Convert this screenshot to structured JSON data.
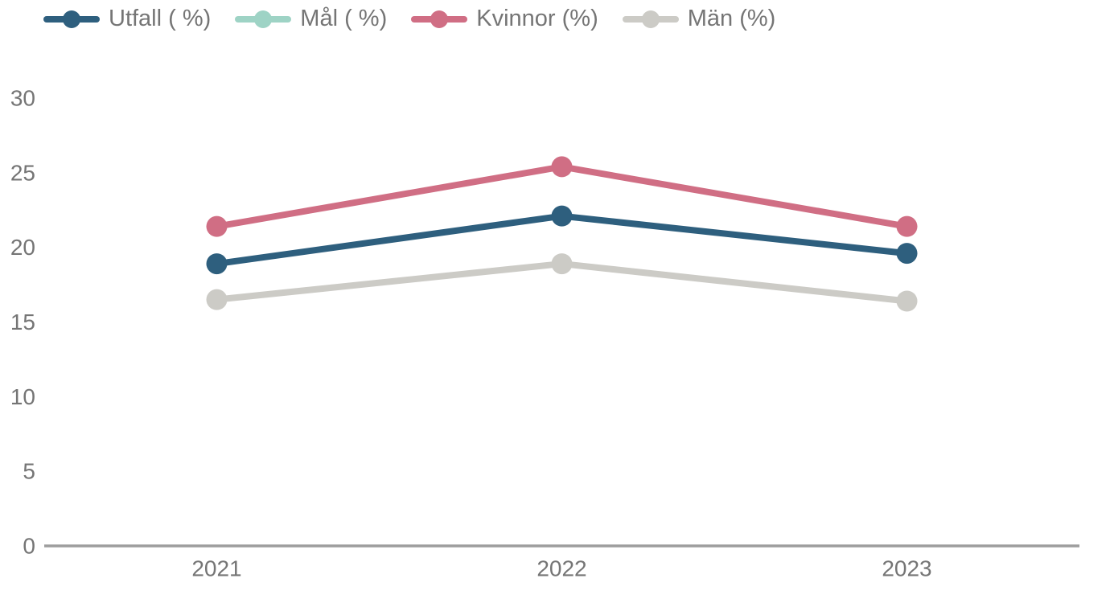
{
  "legend": {
    "items": [
      {
        "key": "utfall",
        "label": "Utfall ( %)",
        "color": "#2e5f7e"
      },
      {
        "key": "mal",
        "label": "Mål ( %)",
        "color": "#9ed3c5"
      },
      {
        "key": "kvinnor",
        "label": "Kvinnor (%)",
        "color": "#d06e84"
      },
      {
        "key": "man",
        "label": "Män (%)",
        "color": "#cccbc6"
      }
    ]
  },
  "chart_data": {
    "type": "line",
    "title": "",
    "xlabel": "",
    "ylabel": "",
    "categories": [
      "2021",
      "2022",
      "2023"
    ],
    "series": [
      {
        "key": "utfall",
        "name": "Utfall ( %)",
        "color": "#2e5f7e",
        "values": [
          18.9,
          22.1,
          19.6
        ],
        "plotted": true
      },
      {
        "key": "mal",
        "name": "Mål ( %)",
        "color": "#9ed3c5",
        "values": null,
        "plotted": false
      },
      {
        "key": "kvinnor",
        "name": "Kvinnor (%)",
        "color": "#d06e84",
        "values": [
          21.4,
          25.4,
          21.4
        ],
        "plotted": true
      },
      {
        "key": "man",
        "name": "Män (%)",
        "color": "#cccbc6",
        "values": [
          16.5,
          18.9,
          16.4
        ],
        "plotted": true
      }
    ],
    "yticks": [
      0,
      5,
      10,
      15,
      20,
      25,
      30
    ],
    "ylim": [
      0,
      30
    ],
    "grid": false,
    "legend_position": "top-left",
    "axis_color": "#9e9e9e",
    "label_color": "#757575"
  }
}
